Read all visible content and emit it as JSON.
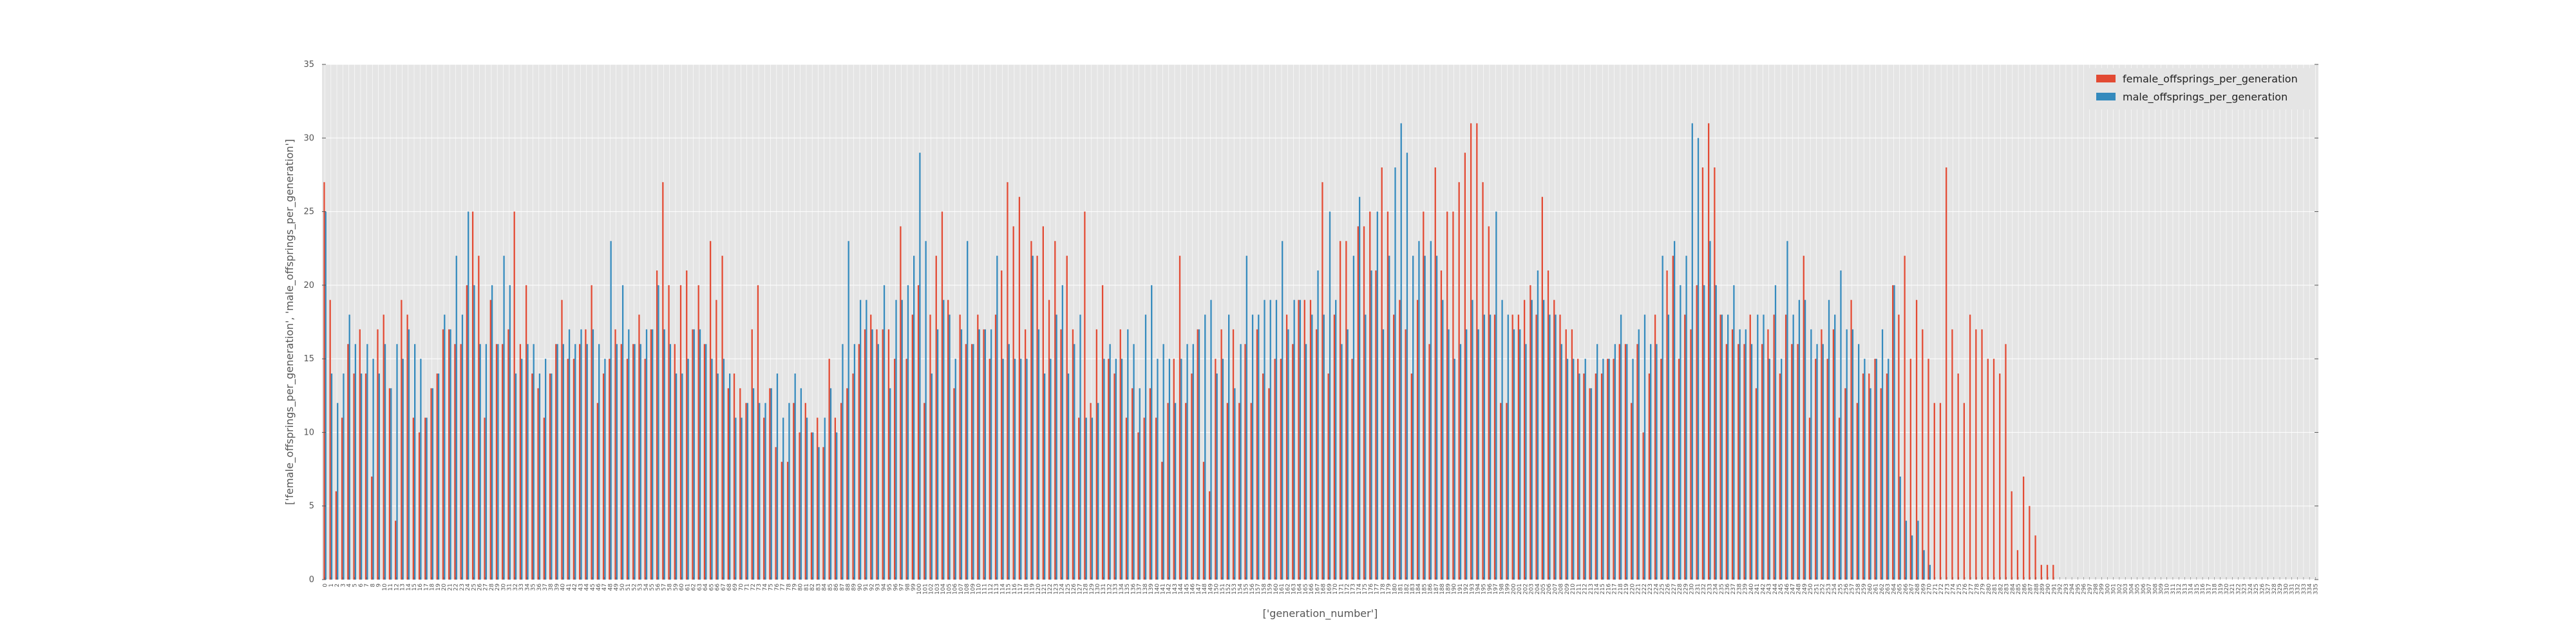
{
  "chart_data": {
    "type": "bar",
    "xlabel": "['generation_number']",
    "ylabel": "['female_offsprings_per_generation', 'male_offsprings_per_generation']",
    "ylim": [
      0,
      35
    ],
    "yticks": [
      0,
      5,
      10,
      15,
      20,
      25,
      30,
      35
    ],
    "grid": true,
    "legend_position": "top-right",
    "x_start": 0,
    "x_end": 335,
    "series": [
      {
        "name": "female_offsprings_per_generation",
        "color": "#E24A33",
        "values": [
          27,
          19,
          6,
          11,
          16,
          14,
          17,
          14,
          7,
          17,
          18,
          13,
          4,
          19,
          18,
          11,
          10,
          11,
          13,
          14,
          17,
          17,
          16,
          16,
          20,
          25,
          22,
          11,
          19,
          16,
          16,
          17,
          25,
          16,
          20,
          14,
          13,
          11,
          14,
          16,
          19,
          15,
          15,
          16,
          17,
          20,
          12,
          14,
          15,
          17,
          16,
          15,
          16,
          18,
          15,
          17,
          21,
          27,
          20,
          16,
          20,
          21,
          17,
          20,
          16,
          23,
          19,
          22,
          13,
          14,
          13,
          12,
          17,
          20,
          11,
          13,
          9,
          8,
          8,
          12,
          10,
          12,
          10,
          11,
          9,
          15,
          11,
          12,
          13,
          14,
          16,
          17,
          18,
          17,
          17,
          17,
          15,
          24,
          15,
          18,
          20,
          12,
          18,
          22,
          25,
          19,
          13,
          18,
          16,
          16,
          18,
          17,
          15,
          18,
          21,
          27,
          24,
          26,
          17,
          23,
          22,
          24,
          19,
          23,
          17,
          22,
          17,
          11,
          25,
          12,
          17,
          20,
          15,
          14,
          17,
          11,
          13,
          10,
          11,
          13,
          11,
          8,
          12,
          15,
          22,
          12,
          14,
          17,
          8,
          6,
          15,
          17,
          12,
          17,
          12,
          16,
          12,
          17,
          14,
          13,
          15,
          15,
          18,
          16,
          19,
          19,
          19,
          17,
          27,
          14,
          18,
          23,
          23,
          15,
          24,
          24,
          25,
          21,
          28,
          25,
          18,
          19,
          17,
          14,
          19,
          25,
          16,
          28,
          21,
          25,
          25,
          27,
          29,
          31,
          31,
          27,
          24,
          18,
          12,
          12,
          18,
          18,
          19,
          20,
          18,
          26,
          21,
          19,
          18,
          17,
          17,
          15,
          14,
          13,
          14,
          14,
          15,
          15,
          16,
          16,
          12,
          16,
          10,
          14,
          18,
          15,
          21,
          22,
          15,
          18,
          17,
          20,
          28,
          31,
          28,
          18,
          16,
          17,
          16,
          16,
          18,
          13,
          16,
          17,
          18,
          14,
          18,
          16,
          16,
          22,
          11,
          15,
          17,
          15,
          17,
          11,
          13,
          19,
          12,
          14,
          14,
          15,
          13,
          14,
          20,
          18,
          22,
          15,
          19,
          17,
          15,
          12,
          12,
          28,
          17,
          14,
          12,
          18,
          17,
          17,
          15,
          15,
          14,
          16,
          6,
          2,
          7,
          5,
          3,
          1,
          1,
          1,
          0,
          0,
          0,
          0,
          0,
          0,
          0,
          0,
          0,
          0,
          0,
          0,
          0,
          0,
          0,
          0,
          0,
          0,
          0,
          0,
          0,
          0,
          0,
          0,
          0,
          0,
          0,
          0,
          0,
          0,
          0,
          0,
          0,
          0,
          0,
          0,
          0,
          0,
          0
        ]
      },
      {
        "name": "male_offsprings_per_generation",
        "color": "#348ABD",
        "values": [
          25,
          14,
          12,
          14,
          18,
          16,
          14,
          16,
          15,
          14,
          16,
          13,
          16,
          15,
          17,
          16,
          15,
          11,
          13,
          14,
          18,
          17,
          22,
          18,
          25,
          20,
          16,
          16,
          20,
          16,
          22,
          20,
          14,
          15,
          16,
          16,
          14,
          15,
          14,
          16,
          16,
          17,
          16,
          17,
          16,
          17,
          16,
          15,
          23,
          16,
          20,
          17,
          16,
          16,
          17,
          17,
          20,
          17,
          16,
          14,
          14,
          15,
          17,
          17,
          16,
          15,
          14,
          15,
          14,
          11,
          11,
          12,
          13,
          12,
          12,
          13,
          14,
          11,
          12,
          14,
          13,
          11,
          10,
          9,
          11,
          13,
          10,
          16,
          23,
          16,
          19,
          19,
          17,
          16,
          20,
          13,
          19,
          19,
          20,
          22,
          29,
          23,
          14,
          17,
          19,
          18,
          15,
          17,
          23,
          16,
          17,
          17,
          17,
          22,
          15,
          16,
          15,
          15,
          15,
          22,
          17,
          14,
          15,
          18,
          20,
          14,
          16,
          18,
          11,
          11,
          12,
          15,
          16,
          15,
          15,
          17,
          16,
          13,
          18,
          20,
          15,
          16,
          15,
          12,
          15,
          16,
          16,
          17,
          18,
          19,
          14,
          15,
          18,
          13,
          16,
          22,
          18,
          18,
          19,
          19,
          19,
          23,
          17,
          19,
          19,
          16,
          18,
          21,
          18,
          25,
          19,
          16,
          17,
          22,
          26,
          18,
          21,
          25,
          17,
          22,
          28,
          31,
          29,
          22,
          23,
          22,
          23,
          22,
          19,
          17,
          15,
          16,
          17,
          19,
          17,
          18,
          18,
          25,
          19,
          18,
          17,
          17,
          16,
          19,
          21,
          19,
          18,
          18,
          16,
          15,
          15,
          14,
          15,
          13,
          16,
          15,
          15,
          16,
          18,
          16,
          15,
          17,
          18,
          16,
          16,
          22,
          18,
          23,
          20,
          22,
          31,
          30,
          20,
          23,
          20,
          18,
          18,
          20,
          17,
          17,
          16,
          18,
          18,
          15,
          20,
          15,
          23,
          18,
          19,
          19,
          17,
          16,
          16,
          19,
          18,
          21,
          17,
          17,
          16,
          15,
          13,
          15,
          17,
          15,
          20,
          7,
          4,
          3,
          4,
          2,
          1,
          0,
          0,
          0,
          0,
          0,
          0,
          0,
          0,
          0,
          0,
          0,
          0,
          0,
          0,
          0,
          0,
          0,
          0,
          0,
          0,
          0,
          0,
          0,
          0,
          0,
          0,
          0,
          0,
          0,
          0,
          0,
          0,
          0,
          0,
          0,
          0,
          0,
          0,
          0,
          0,
          0,
          0,
          0,
          0
        ]
      }
    ]
  }
}
